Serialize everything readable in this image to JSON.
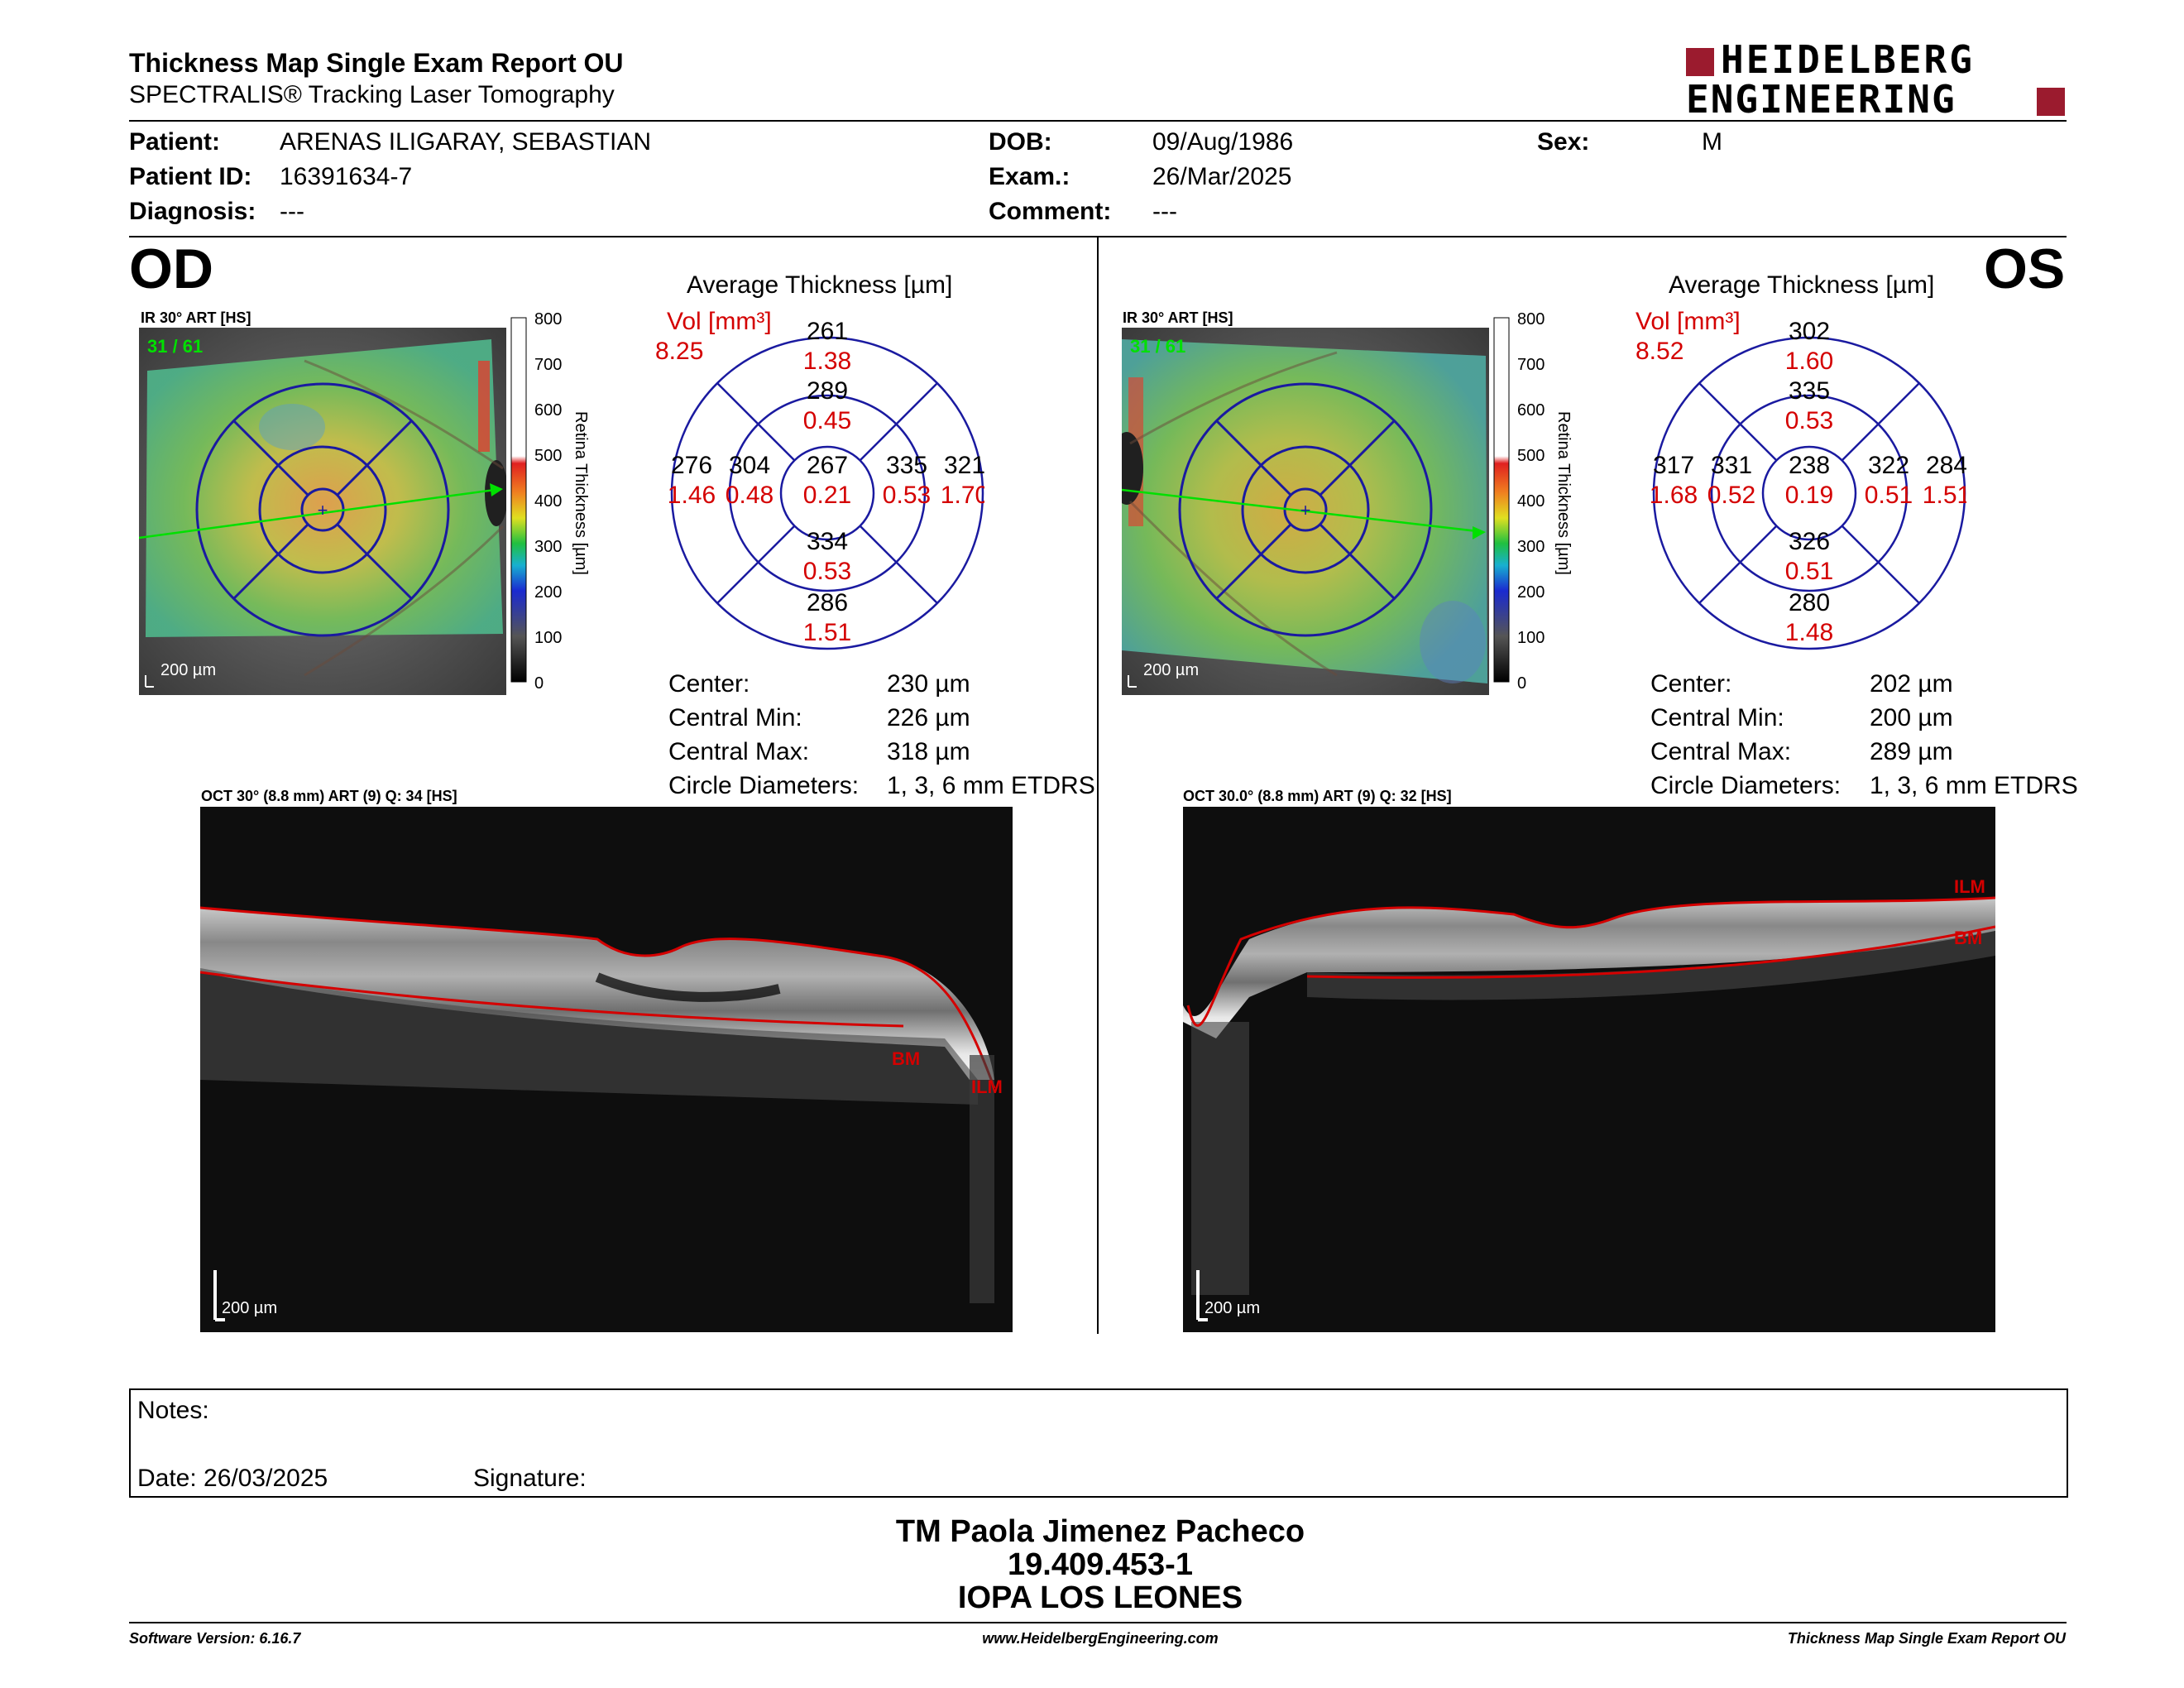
{
  "header": {
    "title": "Thickness Map Single Exam Report OU",
    "subtitle": "SPECTRALIS® Tracking Laser Tomography",
    "brand_line1": "HEIDELBERG",
    "brand_line2": "ENGINEERING",
    "brand_color": "#9b1b2e"
  },
  "patient": {
    "patient_label": "Patient:",
    "patient_value": "ARENAS ILIGARAY, SEBASTIAN",
    "id_label": "Patient ID:",
    "id_value": "16391634-7",
    "diag_label": "Diagnosis:",
    "diag_value": "---",
    "dob_label": "DOB:",
    "dob_value": "09/Aug/1986",
    "exam_label": "Exam.:",
    "exam_value": "26/Mar/2025",
    "comment_label": "Comment:",
    "comment_value": "---",
    "sex_label": "Sex:",
    "sex_value": "M"
  },
  "od": {
    "eye": "OD",
    "ir_caption": "IR 30° ART [HS]",
    "frames": "31 / 61",
    "scale_label": "200 µm",
    "avg_title": "Average Thickness [µm]",
    "vol_label": "Vol [mm³]",
    "vol_value": "8.25",
    "grid": {
      "center": {
        "t": "267",
        "v": "0.21"
      },
      "inner_top": {
        "t": "289",
        "v": "0.45"
      },
      "inner_bottom": {
        "t": "334",
        "v": "0.53"
      },
      "inner_left": {
        "t": "304",
        "v": "0.48"
      },
      "inner_right": {
        "t": "335",
        "v": "0.53"
      },
      "outer_top": {
        "t": "261",
        "v": "1.38"
      },
      "outer_bottom": {
        "t": "286",
        "v": "1.51"
      },
      "outer_left": {
        "t": "276",
        "v": "1.46"
      },
      "outer_right": {
        "t": "321",
        "v": "1.70"
      }
    },
    "stats": {
      "center_label": "Center:",
      "center_value": "230 µm",
      "min_label": "Central Min:",
      "min_value": "226 µm",
      "max_label": "Central Max:",
      "max_value": "318 µm",
      "diam_label": "Circle Diameters:",
      "diam_value": "1, 3, 6 mm ETDRS"
    },
    "oct_caption": "OCT 30° (8.8 mm) ART (9) Q: 34 [HS]",
    "oct_scale": "200 µm",
    "ilm": "ILM",
    "bm": "BM"
  },
  "os": {
    "eye": "OS",
    "ir_caption": "IR 30° ART [HS]",
    "frames": "31 / 61",
    "scale_label": "200 µm",
    "avg_title": "Average Thickness [µm]",
    "vol_label": "Vol [mm³]",
    "vol_value": "8.52",
    "grid": {
      "center": {
        "t": "238",
        "v": "0.19"
      },
      "inner_top": {
        "t": "335",
        "v": "0.53"
      },
      "inner_bottom": {
        "t": "326",
        "v": "0.51"
      },
      "inner_left": {
        "t": "331",
        "v": "0.52"
      },
      "inner_right": {
        "t": "322",
        "v": "0.51"
      },
      "outer_top": {
        "t": "302",
        "v": "1.60"
      },
      "outer_bottom": {
        "t": "280",
        "v": "1.48"
      },
      "outer_left": {
        "t": "317",
        "v": "1.68"
      },
      "outer_right": {
        "t": "284",
        "v": "1.51"
      }
    },
    "stats": {
      "center_label": "Center:",
      "center_value": "202 µm",
      "min_label": "Central Min:",
      "min_value": "200 µm",
      "max_label": "Central Max:",
      "max_value": "289 µm",
      "diam_label": "Circle Diameters:",
      "diam_value": "1, 3, 6 mm ETDRS"
    },
    "oct_caption": "OCT 30.0° (8.8 mm) ART (9) Q: 32 [HS]",
    "oct_scale": "200 µm",
    "ilm": "ILM",
    "bm": "BM"
  },
  "colorbar": {
    "title": "Retina  Thickness [µm]",
    "ticks": [
      "800",
      "700",
      "600",
      "500",
      "400",
      "300",
      "200",
      "100",
      "0"
    ]
  },
  "notes": {
    "notes_label": "Notes:",
    "date_label": "Date: 26/03/2025",
    "signature_label": "Signature:"
  },
  "stamp": {
    "line1": "TM Paola Jimenez Pacheco",
    "line2": "19.409.453-1",
    "line3": "IOPA LOS LEONES"
  },
  "footer": {
    "software": "Software Version: 6.16.7",
    "website": "www.HeidelbergEngineering.com",
    "report": "Thickness Map Single Exam Report OU"
  },
  "colors": {
    "grid_blue": "#1a1aa0",
    "value_red": "#d40000",
    "frames_green": "#00e000"
  }
}
